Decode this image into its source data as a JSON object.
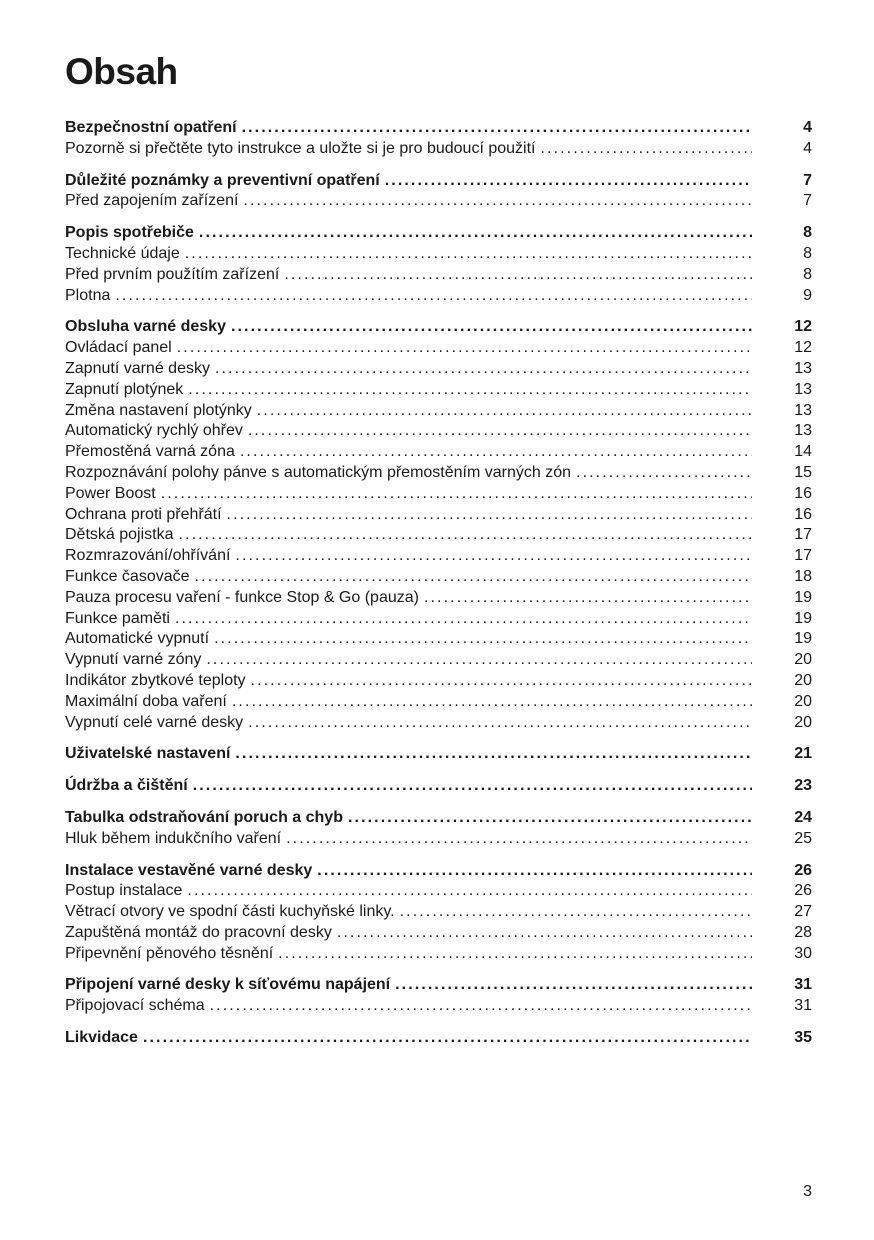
{
  "page": {
    "title": "Obsah",
    "footer_page_number": "3"
  },
  "colors": {
    "text": "#1a1a1a",
    "background": "#ffffff"
  },
  "toc": {
    "groups": [
      {
        "items": [
          {
            "label": "Bezpečnostní opatření",
            "page": "4",
            "bold": true
          },
          {
            "label": "Pozorně si přečtěte tyto instrukce a uložte si je pro budoucí použití",
            "page": "4",
            "bold": false
          }
        ]
      },
      {
        "items": [
          {
            "label": "Důležité poznámky a preventivní opatření",
            "page": "7",
            "bold": true
          },
          {
            "label": "Před zapojením zařízení",
            "page": "7",
            "bold": false
          }
        ]
      },
      {
        "items": [
          {
            "label": "Popis spotřebiče",
            "page": "8",
            "bold": true
          },
          {
            "label": "Technické údaje",
            "page": "8",
            "bold": false
          },
          {
            "label": "Před prvním použítím zařízení",
            "page": "8",
            "bold": false
          },
          {
            "label": "Plotna",
            "page": "9",
            "bold": false
          }
        ]
      },
      {
        "items": [
          {
            "label": "Obsluha varné desky",
            "page": "12",
            "bold": true
          },
          {
            "label": "Ovládací panel",
            "page": "12",
            "bold": false
          },
          {
            "label": "Zapnutí varné desky",
            "page": "13",
            "bold": false
          },
          {
            "label": "Zapnutí plotýnek",
            "page": "13",
            "bold": false
          },
          {
            "label": "Změna nastavení plotýnky",
            "page": "13",
            "bold": false
          },
          {
            "label": "Automatický rychlý ohřev",
            "page": "13",
            "bold": false
          },
          {
            "label": "Přemostěná varná zóna",
            "page": "14",
            "bold": false
          },
          {
            "label": "Rozpoznávání polohy pánve s automatickým přemostěním varných zón",
            "page": "15",
            "bold": false
          },
          {
            "label": "Power Boost",
            "page": "16",
            "bold": false
          },
          {
            "label": "Ochrana proti přehřátí",
            "page": "16",
            "bold": false
          },
          {
            "label": "Dětská pojistka",
            "page": "17",
            "bold": false
          },
          {
            "label": "Rozmrazování/ohřívání",
            "page": "17",
            "bold": false
          },
          {
            "label": "Funkce časovače",
            "page": "18",
            "bold": false
          },
          {
            "label": "Pauza procesu vaření - funkce Stop & Go (pauza)",
            "page": "19",
            "bold": false
          },
          {
            "label": "Funkce paměti",
            "page": "19",
            "bold": false
          },
          {
            "label": "Automatické vypnutí",
            "page": "19",
            "bold": false
          },
          {
            "label": "Vypnutí varné zóny",
            "page": "20",
            "bold": false
          },
          {
            "label": "Indikátor zbytkové teploty",
            "page": "20",
            "bold": false
          },
          {
            "label": "Maximální doba vaření",
            "page": "20",
            "bold": false
          },
          {
            "label": "Vypnutí celé varné desky",
            "page": "20",
            "bold": false
          }
        ]
      },
      {
        "items": [
          {
            "label": "Uživatelské nastavení",
            "page": "21",
            "bold": true
          }
        ]
      },
      {
        "items": [
          {
            "label": "Údržba a čištění",
            "page": "23",
            "bold": true
          }
        ]
      },
      {
        "items": [
          {
            "label": "Tabulka odstraňování poruch a chyb",
            "page": "24",
            "bold": true
          },
          {
            "label": "Hluk během indukčního vaření",
            "page": "25",
            "bold": false
          }
        ]
      },
      {
        "items": [
          {
            "label": "Instalace vestavěné varné desky",
            "page": "26",
            "bold": true
          },
          {
            "label": "Postup instalace",
            "page": "26",
            "bold": false
          },
          {
            "label": "Větrací otvory ve spodní části kuchyňské linky.",
            "page": "27",
            "bold": false
          },
          {
            "label": "Zapuštěná montáž do pracovní desky",
            "page": "28",
            "bold": false
          },
          {
            "label": "Připevnění pěnového těsnění",
            "page": "30",
            "bold": false
          }
        ]
      },
      {
        "items": [
          {
            "label": "Připojení varné desky k síťovému napájení",
            "page": "31",
            "bold": true
          },
          {
            "label": "Připojovací schéma",
            "page": "31",
            "bold": false
          }
        ]
      },
      {
        "items": [
          {
            "label": "Likvidace",
            "page": "35",
            "bold": true
          }
        ]
      }
    ]
  }
}
